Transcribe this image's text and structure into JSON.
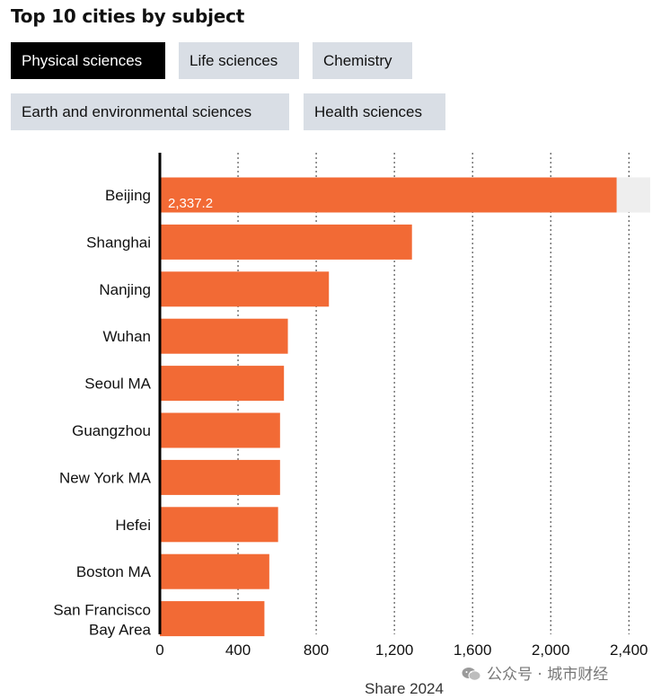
{
  "page_title": "Top 10 cities by subject",
  "tabs": [
    {
      "label": "Physical sciences",
      "active": true
    },
    {
      "label": "Life sciences",
      "active": false
    },
    {
      "label": "Chemistry",
      "active": false
    },
    {
      "label": "Earth and environmental sciences",
      "active": false
    },
    {
      "label": "Health sciences",
      "active": false
    }
  ],
  "colors": {
    "bar": "#f26a35",
    "track": "#eeeeee",
    "active_tab_bg": "#000000",
    "tab_bg": "#d9dee5"
  },
  "chart_data": {
    "type": "bar",
    "orientation": "horizontal",
    "title": "Top 10 cities by subject",
    "categories": [
      "Beijing",
      "Shanghai",
      "Nanjing",
      "Wuhan",
      "Seoul MA",
      "Guangzhou",
      "New York MA",
      "Hefei",
      "Boston MA",
      "San Francisco Bay Area"
    ],
    "category_lines": [
      [
        "Beijing"
      ],
      [
        "Shanghai"
      ],
      [
        "Nanjing"
      ],
      [
        "Wuhan"
      ],
      [
        "Seoul MA"
      ],
      [
        "Guangzhou"
      ],
      [
        "New York MA"
      ],
      [
        "Hefei"
      ],
      [
        "Boston MA"
      ],
      [
        "San Francisco",
        "Bay Area"
      ]
    ],
    "values": [
      2337.2,
      1290,
      865,
      655,
      635,
      615,
      615,
      605,
      560,
      535
    ],
    "data_labels": [
      {
        "index": 0,
        "text": "2,337.2"
      }
    ],
    "xlabel": "Share 2024",
    "ylabel": "",
    "xlim": [
      0,
      2500
    ],
    "xticks": [
      0,
      400,
      800,
      1200,
      1600,
      2000,
      2400
    ],
    "xtick_labels": [
      "0",
      "400",
      "800",
      "1,200",
      "1,600",
      "2,000",
      "2,400"
    ],
    "grid": "vertical dotted"
  },
  "watermark": "公众号 · 城市财经"
}
